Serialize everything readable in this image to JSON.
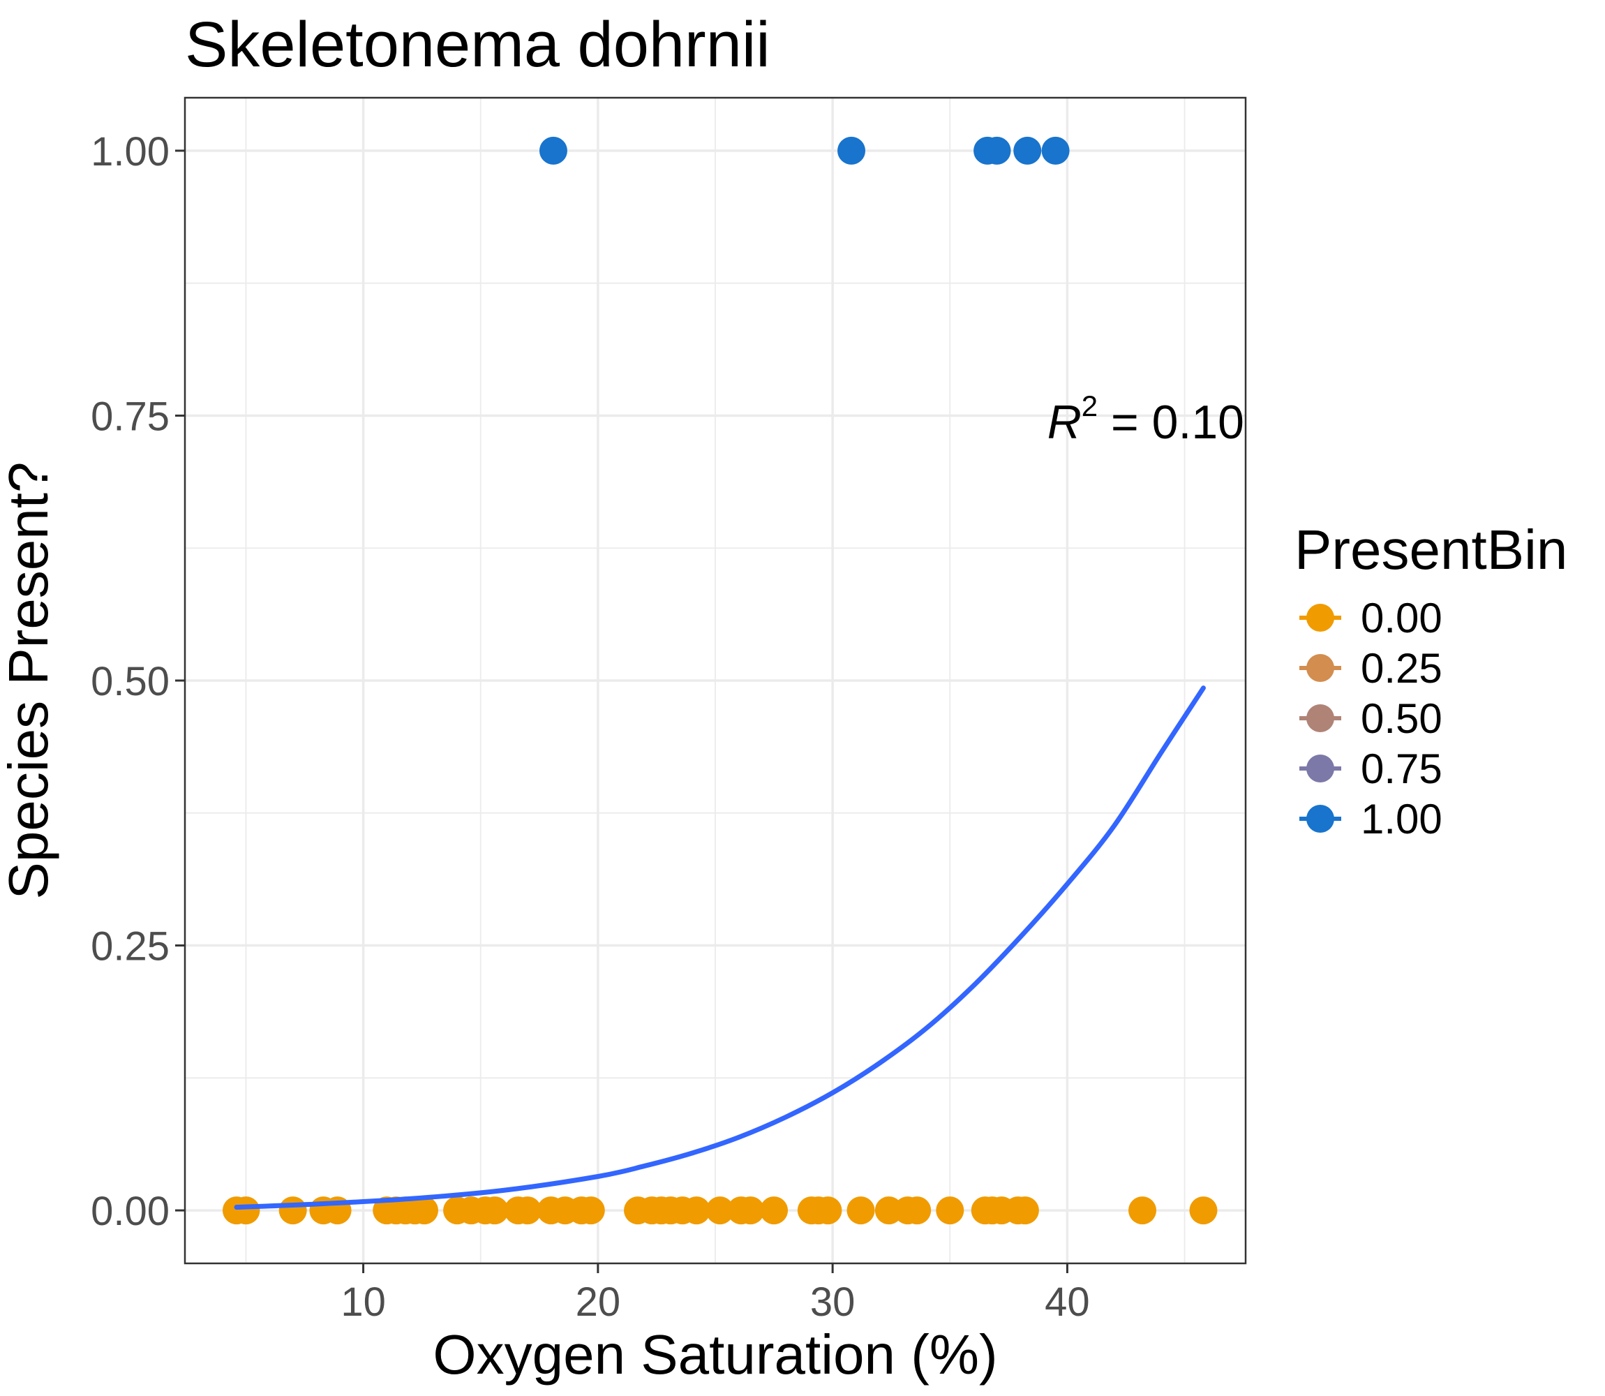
{
  "chart_data": {
    "type": "scatter",
    "title": "Skeletonema dohrnii",
    "xlabel": "Oxygen Saturation (%)",
    "ylabel": "Species Present?",
    "xlim": [
      2.4,
      47.6
    ],
    "ylim": [
      -0.05,
      1.05
    ],
    "x_ticks": [
      10,
      20,
      30,
      40
    ],
    "x_tick_labels": [
      "10",
      "20",
      "30",
      "40"
    ],
    "x_minor_ticks": [
      5,
      15,
      25,
      35,
      45
    ],
    "y_ticks": [
      0,
      0.25,
      0.5,
      0.75,
      1.0
    ],
    "y_tick_labels": [
      "0.00",
      "0.25",
      "0.50",
      "0.75",
      "1.00"
    ],
    "y_minor_ticks": [
      0.125,
      0.375,
      0.625,
      0.875
    ],
    "grid": true,
    "legend": {
      "title": "PresentBin",
      "placement": "right",
      "entries": [
        {
          "label": "0.00",
          "color": "#f09b00"
        },
        {
          "label": "0.25",
          "color": "#d28d4f"
        },
        {
          "label": "0.50",
          "color": "#b08377"
        },
        {
          "label": "0.75",
          "color": "#7c79a8"
        },
        {
          "label": "1.00",
          "color": "#1874cd"
        }
      ]
    },
    "annotation": {
      "text_var": "R",
      "text_sup": "2",
      "text_rest": " = 0.10",
      "x": 43.5,
      "y": 0.745
    },
    "series": [
      {
        "present_bin": 0.0,
        "color": "#f09b00",
        "y": 0,
        "x": [
          4.6,
          5.0,
          7.0,
          8.3,
          8.9,
          11.0,
          11.4,
          11.8,
          12.2,
          12.6,
          14.0,
          14.6,
          15.2,
          15.6,
          16.6,
          17.0,
          18.0,
          18.6,
          19.3,
          19.7,
          21.7,
          22.3,
          22.7,
          23.1,
          23.6,
          24.2,
          25.2,
          26.1,
          26.5,
          27.5,
          29.1,
          29.4,
          29.8,
          31.2,
          32.4,
          33.2,
          33.6,
          35.0,
          36.5,
          36.8,
          37.2,
          37.9,
          38.2,
          43.2,
          45.8
        ]
      },
      {
        "present_bin": 1.0,
        "color": "#1874cd",
        "y": 1,
        "x": [
          18.1,
          30.8,
          36.6,
          37.0,
          38.3,
          39.5
        ]
      }
    ],
    "fit_line": {
      "color": "#3366ff",
      "model": "logistic",
      "x": [
        4.6,
        8,
        12,
        16,
        20,
        22,
        24,
        26,
        28,
        30,
        32,
        34,
        36,
        38,
        40,
        42,
        44,
        45.8
      ],
      "y": [
        0.003,
        0.006,
        0.011,
        0.019,
        0.032,
        0.042,
        0.054,
        0.069,
        0.088,
        0.111,
        0.139,
        0.172,
        0.212,
        0.258,
        0.308,
        0.363,
        0.432,
        0.493
      ]
    }
  }
}
